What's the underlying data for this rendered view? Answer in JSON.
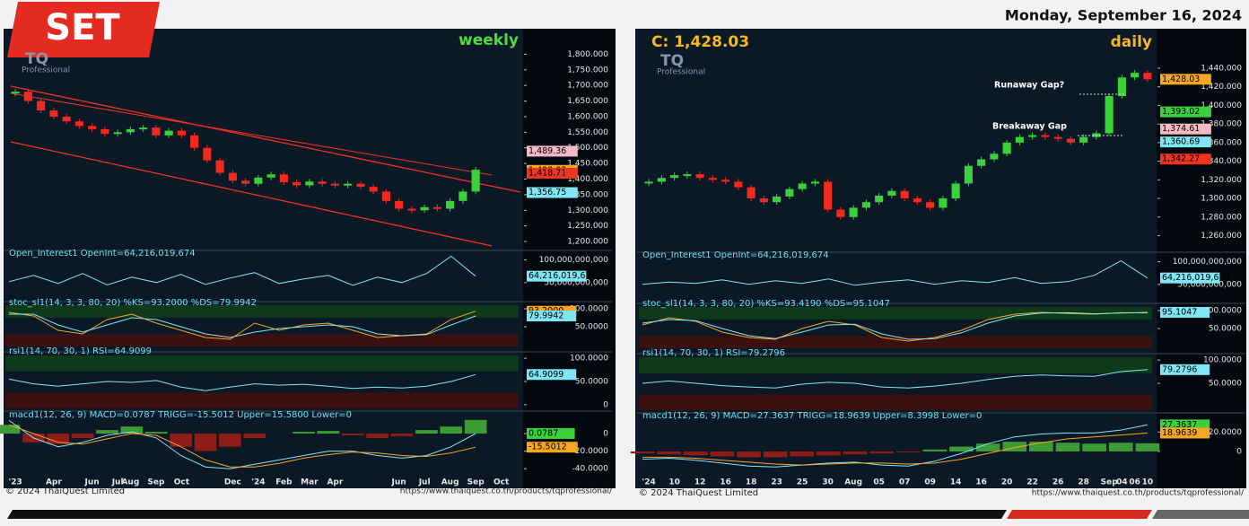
{
  "header": {
    "logo": "SET",
    "date": "Monday, September 16, 2024"
  },
  "watermark": {
    "brand": "TQ",
    "tagline": "Professional"
  },
  "footer": {
    "copyright": "© 2024 ThaiQuest Limited",
    "url": "https://www.thaiquest.co.th/products/tqprofessional/"
  },
  "chart_data": [
    {
      "type": "candlestick",
      "title": "weekly",
      "up_color": "#3ad13a",
      "down_color": "#f02a1f",
      "categories": [
        "'23",
        null,
        null,
        "Apr",
        null,
        null,
        "Jun",
        null,
        "Jul",
        "Aug",
        null,
        "Sep",
        null,
        "Oct",
        null,
        null,
        null,
        "Dec",
        null,
        "'24",
        null,
        "Feb",
        null,
        "Mar",
        null,
        "Apr",
        null,
        null,
        null,
        null,
        "Jun",
        null,
        "Jul",
        null,
        "Aug",
        null,
        "Sep",
        null,
        "Oct",
        null
      ],
      "values": [
        1680,
        1650,
        1620,
        1600,
        1585,
        1570,
        1560,
        1545,
        1550,
        1560,
        1565,
        1540,
        1555,
        1540,
        1500,
        1460,
        1420,
        1395,
        1385,
        1405,
        1415,
        1390,
        1380,
        1392,
        1385,
        1380,
        1385,
        1375,
        1360,
        1330,
        1305,
        1300,
        1310,
        1305,
        1330,
        1360,
        1430,
        null,
        null,
        null
      ],
      "ylim": [
        1180,
        1830
      ],
      "yticks": [
        {
          "value": 1200,
          "label": "1,200.000"
        },
        {
          "value": 1250,
          "label": "1,250.000"
        },
        {
          "value": 1300,
          "label": "1,300.000"
        },
        {
          "value": 1350,
          "label": "1,350.000"
        },
        {
          "value": 1400,
          "label": "1,400.000"
        },
        {
          "value": 1450,
          "label": "1,450.000"
        },
        {
          "value": 1500,
          "label": "1,500.000"
        },
        {
          "value": 1550,
          "label": "1,550.000"
        },
        {
          "value": 1600,
          "label": "1,600.000"
        },
        {
          "value": 1650,
          "label": "1,650.000"
        },
        {
          "value": 1700,
          "label": "1,700.000"
        },
        {
          "value": 1750,
          "label": "1,750.000"
        },
        {
          "value": 1800,
          "label": "1,800.000"
        }
      ],
      "value_boxes": [
        {
          "value": 1489.36,
          "label": "1,489.36",
          "color": "#f7b9c6"
        },
        {
          "value": 1428.03,
          "label": "1,428.03",
          "color": "#f5a623"
        },
        {
          "value": 1418.71,
          "label": "1,418.71",
          "color": "#f0341f"
        },
        {
          "value": 1356.75,
          "label": "1,356.75",
          "color": "#7fe6f5"
        }
      ]
    },
    {
      "type": "line",
      "title": "Open_Interest1 OpenInt=64,216,019,674",
      "series": [
        {
          "color": "#7fe6f5",
          "values": [
            52000000000,
            66000000000,
            48000000000,
            70000000000,
            45000000000,
            62000000000,
            50000000000,
            68000000000,
            46000000000,
            60000000000,
            72000000000,
            48000000000,
            58000000000,
            66000000000,
            44000000000,
            62000000000,
            50000000000,
            70000000000,
            108000000000,
            64216019674
          ]
        }
      ],
      "ylim": [
        20000000000,
        113000000000
      ],
      "yticks": [
        {
          "value": 50000000000,
          "label": "50,000,000,000"
        },
        {
          "value": 100000000000,
          "label": "100,000,000,000"
        }
      ],
      "value_boxes": [
        {
          "value": 64216019674,
          "label": "64,216,019,674",
          "color": "#7fe6f5"
        }
      ]
    },
    {
      "type": "line",
      "title": "stoc_sl1(14, 3, 3, 80, 20) %KS=93.2000 %DS=79.9942",
      "series": [
        {
          "color": "#f5a623",
          "values": [
            90,
            80,
            40,
            30,
            70,
            85,
            60,
            40,
            20,
            15,
            60,
            40,
            55,
            60,
            40,
            20,
            25,
            30,
            70,
            93.2
          ]
        },
        {
          "color": "#7fe6f5",
          "values": [
            85,
            85,
            55,
            35,
            55,
            75,
            70,
            50,
            30,
            20,
            35,
            45,
            50,
            55,
            50,
            30,
            25,
            28,
            55,
            79.9942
          ]
        }
      ],
      "ylim": [
        -5,
        110
      ],
      "yticks": [
        {
          "value": 50,
          "label": "50.0000"
        },
        {
          "value": 100,
          "label": "100.0000"
        }
      ],
      "value_boxes": [
        {
          "value": 93.2,
          "label": "93.2000",
          "color": "#f5a623"
        },
        {
          "value": 79.9942,
          "label": "79.9942",
          "color": "#7fe6f5"
        }
      ]
    },
    {
      "type": "line",
      "title": "rsi1(14, 70, 30, 1) RSI=64.9099",
      "series": [
        {
          "color": "#7fe6f5",
          "values": [
            55,
            45,
            40,
            45,
            50,
            48,
            52,
            38,
            30,
            38,
            45,
            42,
            44,
            40,
            35,
            38,
            36,
            40,
            50,
            64.9099
          ]
        }
      ],
      "ylim": [
        -8,
        106
      ],
      "yticks": [
        0,
        {
          "value": 50,
          "label": "50.0000"
        },
        {
          "value": 100,
          "label": "100.0000"
        }
      ],
      "value_boxes": [
        {
          "value": 64.9099,
          "label": "64.9099",
          "color": "#7fe6f5"
        }
      ]
    },
    {
      "type": "macd",
      "title": "macd1(12, 26, 9) MACD=0.0787 TRIGG=-15.5012 Upper=15.5800 Lower=0",
      "up_color": "#3d9b36",
      "down_color": "#8e1c18",
      "values": [
        10,
        -10,
        -12,
        -5,
        4,
        8,
        2,
        -15,
        -20,
        -15,
        -5,
        0,
        2,
        3,
        -2,
        -5,
        -3,
        4,
        8,
        15.58
      ],
      "series": [
        {
          "color": "#7fe6f5",
          "values": [
            15,
            -5,
            -15,
            -10,
            -2,
            2,
            -5,
            -25,
            -38,
            -40,
            -35,
            -30,
            -25,
            -20,
            -20,
            -25,
            -28,
            -25,
            -15,
            0.0787
          ]
        },
        {
          "color": "#f5a623",
          "values": [
            10,
            0,
            -10,
            -12,
            -6,
            0,
            -2,
            -15,
            -30,
            -38,
            -38,
            -34,
            -28,
            -24,
            -21,
            -22,
            -25,
            -26,
            -22,
            -15.5012
          ]
        }
      ],
      "ylim": [
        -48,
        21.5
      ],
      "yticks": [
        {
          "value": -40,
          "label": "-40.0000"
        },
        {
          "value": -20,
          "label": "-20.0000"
        },
        0
      ],
      "value_boxes": [
        {
          "value": 0.0787,
          "label": "0.0787",
          "color": "#3ad13a"
        },
        {
          "value": -15.5012,
          "label": "-15.5012",
          "color": "#f5a623"
        }
      ]
    },
    {
      "type": "candlestick",
      "title": "daily",
      "subtitle": "C: 1,428.03",
      "up_color": "#3ad13a",
      "down_color": "#f02a1f",
      "annotations": [
        "Runaway Gap?",
        "Breakaway Gap"
      ],
      "categories": [
        "'24",
        null,
        "10",
        null,
        "12",
        null,
        "16",
        null,
        "18",
        null,
        "23",
        null,
        "25",
        null,
        "30",
        null,
        "Aug",
        null,
        "05",
        null,
        "07",
        null,
        "09",
        null,
        "14",
        null,
        "16",
        null,
        "20",
        null,
        "22",
        null,
        "26",
        null,
        "28",
        null,
        "Sep",
        "04",
        "06",
        "10"
      ],
      "values": [
        1318,
        1322,
        1325,
        1326,
        1322,
        1320,
        1318,
        1312,
        1300,
        1296,
        1302,
        1310,
        1316,
        1318,
        1288,
        1280,
        1290,
        1296,
        1303,
        1308,
        1300,
        1296,
        1290,
        1300,
        1316,
        1335,
        1342,
        1348,
        1360,
        1366,
        1368,
        1366,
        1364,
        1360,
        1366,
        1370,
        1410,
        1430,
        1435,
        1428
      ],
      "ylim": [
        1247,
        1465
      ],
      "yticks": [
        {
          "value": 1260,
          "label": "1,260.000"
        },
        {
          "value": 1280,
          "label": "1,280.000"
        },
        {
          "value": 1300,
          "label": "1,300.000"
        },
        {
          "value": 1320,
          "label": "1,320.000"
        },
        {
          "value": 1340,
          "label": "1,340.000"
        },
        {
          "value": 1360,
          "label": "1,360.000"
        },
        {
          "value": 1380,
          "label": "1,380.000"
        },
        {
          "value": 1400,
          "label": "1,400.000"
        },
        {
          "value": 1420,
          "label": "1,420.000"
        },
        {
          "value": 1440,
          "label": "1,440.000"
        }
      ],
      "value_boxes": [
        {
          "value": 1428.03,
          "label": "1,428.03",
          "color": "#f5a623"
        },
        {
          "value": 1393.02,
          "label": "1,393.02",
          "color": "#3ad13a"
        },
        {
          "value": 1374.61,
          "label": "1,374.61",
          "color": "#f7b9c6"
        },
        {
          "value": 1360.69,
          "label": "1,360.69",
          "color": "#7fe6f5"
        },
        {
          "value": 1342.27,
          "label": "1,342.27",
          "color": "#f0341f"
        }
      ]
    },
    {
      "type": "line",
      "title": "Open_Interest1 OpenInt=64,216,019,674",
      "series": [
        {
          "color": "#7fe6f5",
          "values": [
            50000000000,
            55000000000,
            52000000000,
            60000000000,
            50000000000,
            58000000000,
            52000000000,
            62000000000,
            48000000000,
            55000000000,
            60000000000,
            50000000000,
            58000000000,
            54000000000,
            65000000000,
            52000000000,
            56000000000,
            70000000000,
            102000000000,
            64216019674
          ]
        }
      ],
      "ylim": [
        20000000000,
        113000000000
      ],
      "yticks": [
        {
          "value": 50000000000,
          "label": "50,000,000,000"
        },
        {
          "value": 100000000000,
          "label": "100,000,000,000"
        }
      ],
      "value_boxes": [
        {
          "value": 64216019674,
          "label": "64,216,019,674",
          "color": "#7fe6f5"
        }
      ]
    },
    {
      "type": "line",
      "title": "stoc_sl1(14, 3, 3, 80, 20) %KS=93.4190 %DS=95.1047",
      "series": [
        {
          "color": "#f5a623",
          "values": [
            60,
            80,
            70,
            40,
            25,
            20,
            50,
            70,
            60,
            25,
            15,
            25,
            45,
            75,
            90,
            95,
            92,
            90,
            94,
            93.419
          ]
        },
        {
          "color": "#7fe6f5",
          "values": [
            65,
            75,
            72,
            50,
            30,
            22,
            40,
            60,
            62,
            35,
            20,
            22,
            38,
            65,
            85,
            93,
            94,
            91,
            93,
            95.1047
          ]
        }
      ],
      "ylim": [
        -5,
        110
      ],
      "yticks": [
        {
          "value": 50,
          "label": "50.0000"
        },
        {
          "value": 100,
          "label": "100.0000"
        }
      ],
      "value_boxes": [
        {
          "value": 95.1047,
          "label": "95.1047",
          "color": "#7fe6f5"
        }
      ]
    },
    {
      "type": "line",
      "title": "rsi1(14, 70, 30, 1) RSI=79.2796",
      "series": [
        {
          "color": "#7fe6f5",
          "values": [
            50,
            55,
            50,
            45,
            42,
            40,
            48,
            52,
            50,
            42,
            40,
            44,
            50,
            58,
            65,
            68,
            66,
            65,
            75,
            79.2796
          ]
        }
      ],
      "ylim": [
        -8,
        106
      ],
      "yticks": [
        {
          "value": 50,
          "label": "50.0000"
        },
        {
          "value": 100,
          "label": "100.0000"
        }
      ],
      "value_boxes": [
        {
          "value": 79.2796,
          "label": "79.2796",
          "color": "#7fe6f5"
        }
      ]
    },
    {
      "type": "macd",
      "title": "macd1(12, 26, 9) MACD=27.3637 TRIGG=18.9639 Upper=8.3998 Lower=0",
      "up_color": "#3d9b36",
      "down_color": "#8e1c18",
      "values": [
        -2,
        -3,
        -4,
        -5,
        -6,
        -6,
        -5,
        -4,
        -3,
        -2,
        -1,
        2,
        5,
        8,
        10,
        10,
        9,
        8,
        9,
        8.3998
      ],
      "series": [
        {
          "color": "#7fe6f5",
          "values": [
            -8,
            -7,
            -9,
            -12,
            -15,
            -16,
            -14,
            -12,
            -11,
            -14,
            -15,
            -10,
            -2,
            8,
            15,
            18,
            19,
            19,
            22,
            27.3637
          ]
        },
        {
          "color": "#f5a623",
          "values": [
            -6,
            -6,
            -7,
            -9,
            -11,
            -13,
            -14,
            -13,
            -12,
            -12,
            -13,
            -12,
            -8,
            -2,
            4,
            9,
            13,
            15,
            17,
            18.9639
          ]
        }
      ],
      "ylim": [
        -25,
        36
      ],
      "yticks": [
        0,
        {
          "value": 20,
          "label": "20.0000"
        }
      ],
      "value_boxes": [
        {
          "value": 27.3637,
          "label": "27.3637",
          "color": "#3ad13a"
        },
        {
          "value": 18.9639,
          "label": "18.9639",
          "color": "#f5a623"
        }
      ]
    }
  ]
}
